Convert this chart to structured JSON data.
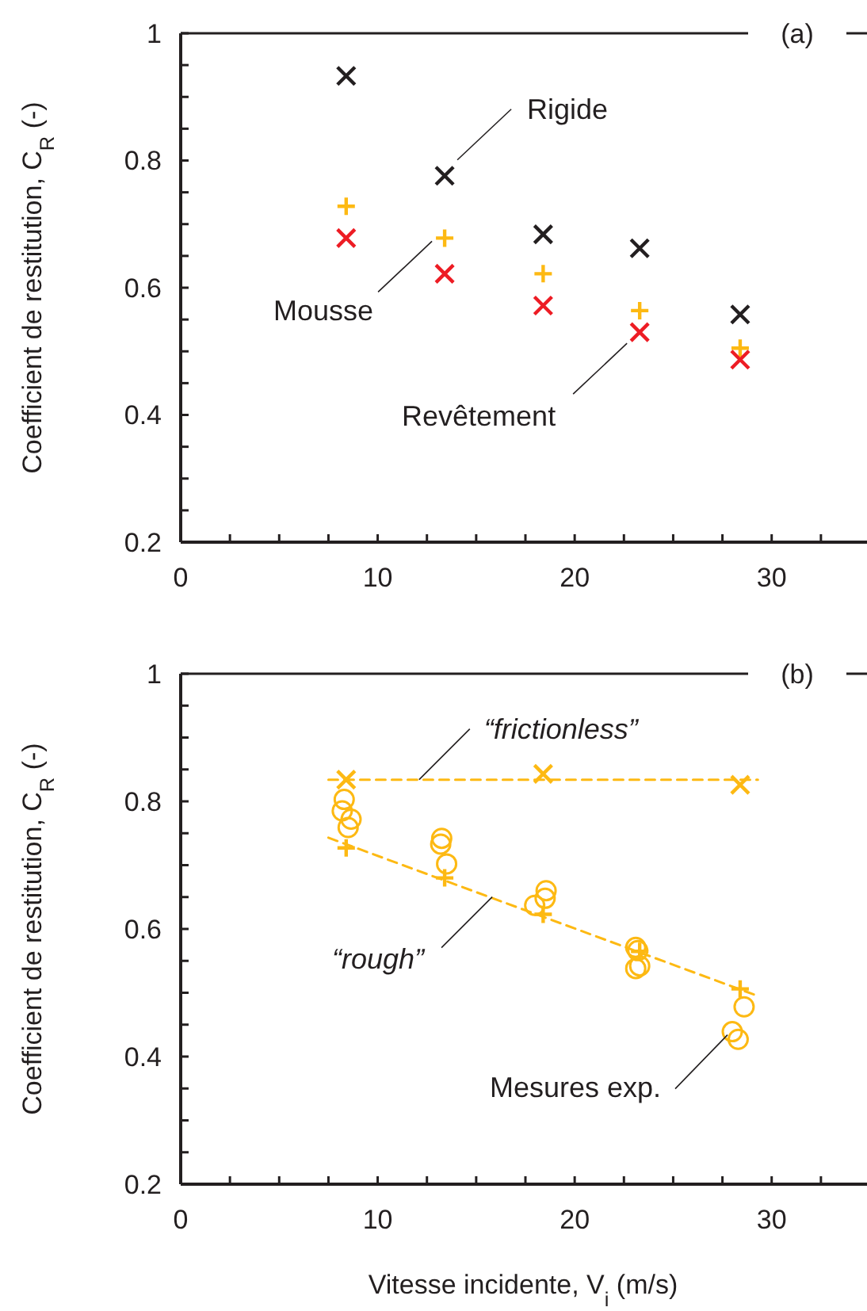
{
  "chart_data": [
    {
      "type": "scatter",
      "title": "(a)",
      "ylabel": "Coefficient de restitution, C$_{R}$ (-)",
      "xlim": [
        0,
        35
      ],
      "ylim": [
        0.2,
        1
      ],
      "xticks": [
        0,
        {
          "value": 2.5,
          "label": null
        },
        {
          "value": 5,
          "label": null
        },
        {
          "value": 7.5,
          "label": null
        },
        10,
        {
          "value": 12.5,
          "label": null
        },
        {
          "value": 15,
          "label": null
        },
        {
          "value": 17.5,
          "label": null
        },
        20,
        {
          "value": 22.5,
          "label": null
        },
        {
          "value": 25,
          "label": null
        },
        {
          "value": 27.5,
          "label": null
        },
        30,
        {
          "value": 32.5,
          "label": null
        }
      ],
      "yticks": [
        0.2,
        {
          "value": 0.25,
          "label": null
        },
        {
          "value": 0.3,
          "label": null
        },
        {
          "value": 0.35,
          "label": null
        },
        0.4,
        {
          "value": 0.45,
          "label": null
        },
        {
          "value": 0.5,
          "label": null
        },
        {
          "value": 0.55,
          "label": null
        },
        0.6,
        {
          "value": 0.65,
          "label": null
        },
        {
          "value": 0.7,
          "label": null
        },
        {
          "value": 0.75,
          "label": null
        },
        0.8,
        {
          "value": 0.85,
          "label": null
        },
        {
          "value": 0.9,
          "label": null
        },
        {
          "value": 0.95,
          "label": null
        },
        1
      ],
      "grid": false,
      "series": [
        {
          "name": "Rigide",
          "marker": "cross",
          "color": "#231f20",
          "x": [
            8.4,
            13.4,
            18.4,
            23.3,
            28.4
          ],
          "values": [
            0.933,
            0.776,
            0.684,
            0.662,
            0.558
          ]
        },
        {
          "name": "Mousse",
          "marker": "plus",
          "color": "#fdb913",
          "x": [
            8.4,
            13.4,
            18.4,
            23.3,
            28.4
          ],
          "values": [
            0.728,
            0.678,
            0.622,
            0.564,
            0.505
          ]
        },
        {
          "name": "Revêtement",
          "marker": "cross",
          "color": "#ed1c24",
          "x": [
            8.4,
            13.4,
            18.4,
            23.3,
            28.4
          ],
          "values": [
            0.678,
            0.622,
            0.572,
            0.53,
            0.487
          ]
        }
      ]
    },
    {
      "type": "scatter",
      "title": "(b)",
      "xlabel": "Vitesse incidente, V$_{i}$ (m/s)",
      "ylabel": "Coefficient de restitution, C$_{R}$ (-)",
      "xlim": [
        0,
        35
      ],
      "ylim": [
        0.2,
        1
      ],
      "xticks": [
        0,
        {
          "value": 2.5,
          "label": null
        },
        {
          "value": 5,
          "label": null
        },
        {
          "value": 7.5,
          "label": null
        },
        10,
        {
          "value": 12.5,
          "label": null
        },
        {
          "value": 15,
          "label": null
        },
        {
          "value": 17.5,
          "label": null
        },
        20,
        {
          "value": 22.5,
          "label": null
        },
        {
          "value": 25,
          "label": null
        },
        {
          "value": 27.5,
          "label": null
        },
        30,
        {
          "value": 32.5,
          "label": null
        }
      ],
      "yticks": [
        0.2,
        {
          "value": 0.25,
          "label": null
        },
        {
          "value": 0.3,
          "label": null
        },
        {
          "value": 0.35,
          "label": null
        },
        0.4,
        {
          "value": 0.45,
          "label": null
        },
        {
          "value": 0.5,
          "label": null
        },
        {
          "value": 0.55,
          "label": null
        },
        0.6,
        {
          "value": 0.65,
          "label": null
        },
        {
          "value": 0.7,
          "label": null
        },
        {
          "value": 0.75,
          "label": null
        },
        0.8,
        {
          "value": 0.85,
          "label": null
        },
        {
          "value": 0.9,
          "label": null
        },
        {
          "value": 0.95,
          "label": null
        },
        1
      ],
      "grid": false,
      "series": [
        {
          "type": "line",
          "line_style": "dashed",
          "color": "#fdb913",
          "x": [
            7.5,
            29.3
          ],
          "values": [
            0.834,
            0.834
          ]
        },
        {
          "type": "line",
          "line_style": "dashed",
          "color": "#fdb913",
          "x": [
            7.5,
            29.3
          ],
          "values": [
            0.743,
            0.495
          ]
        },
        {
          "name": "“frictionless”",
          "marker": "cross",
          "color": "#fdb913",
          "x": [
            8.4,
            18.4,
            28.4
          ],
          "values": [
            0.834,
            0.843,
            0.826
          ]
        },
        {
          "name": "Mesures exp.",
          "marker": "circle",
          "color": "#fdb913",
          "x": [
            8.3,
            8.2,
            8.65,
            8.5,
            13.25,
            13.2,
            13.5,
            18.55,
            18.5,
            17.97,
            23.1,
            23.2,
            23.1,
            23.3,
            28.6,
            28.0,
            28.3
          ],
          "values": [
            0.803,
            0.785,
            0.772,
            0.759,
            0.742,
            0.733,
            0.702,
            0.66,
            0.648,
            0.637,
            0.571,
            0.566,
            0.538,
            0.542,
            0.478,
            0.439,
            0.427
          ]
        },
        {
          "name": "“rough”",
          "marker": "plus",
          "color": "#fdb913",
          "x": [
            8.4,
            13.4,
            18.4,
            23.3,
            28.4
          ],
          "values": [
            0.727,
            0.68,
            0.623,
            0.565,
            0.506
          ]
        }
      ]
    }
  ]
}
